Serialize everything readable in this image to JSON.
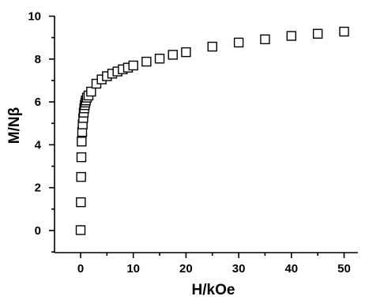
{
  "chart_data": {
    "type": "scatter",
    "xlabel": "H/kOe",
    "ylabel": "M/Nβ",
    "xlim": [
      -5,
      52
    ],
    "ylim": [
      -1,
      10
    ],
    "xticks": [
      0,
      10,
      20,
      30,
      40,
      50
    ],
    "yticks": [
      0,
      2,
      4,
      6,
      8,
      10
    ],
    "xtick_labels": [
      "0",
      "10",
      "20",
      "30",
      "40",
      "50"
    ],
    "ytick_labels": [
      "0",
      "2",
      "4",
      "6",
      "8",
      "10"
    ],
    "marker": "open-square",
    "grid": false,
    "series": [
      {
        "points": [
          [
            0.0,
            0.02
          ],
          [
            0.05,
            1.32
          ],
          [
            0.1,
            2.5
          ],
          [
            0.15,
            3.42
          ],
          [
            0.2,
            4.15
          ],
          [
            0.3,
            4.6
          ],
          [
            0.4,
            4.95
          ],
          [
            0.5,
            5.25
          ],
          [
            0.6,
            5.5
          ],
          [
            0.7,
            5.7
          ],
          [
            0.8,
            5.85
          ],
          [
            0.9,
            5.97
          ],
          [
            1.0,
            6.07
          ],
          [
            1.2,
            6.2
          ],
          [
            1.5,
            6.3
          ],
          [
            2.0,
            6.48
          ],
          [
            3.0,
            6.85
          ],
          [
            4.0,
            7.05
          ],
          [
            5.0,
            7.2
          ],
          [
            6.0,
            7.32
          ],
          [
            7.0,
            7.42
          ],
          [
            8.0,
            7.52
          ],
          [
            9.0,
            7.6
          ],
          [
            10.0,
            7.7
          ],
          [
            12.5,
            7.88
          ],
          [
            15.0,
            8.02
          ],
          [
            17.5,
            8.2
          ],
          [
            20.0,
            8.32
          ],
          [
            25.0,
            8.58
          ],
          [
            30.0,
            8.77
          ],
          [
            35.0,
            8.92
          ],
          [
            40.0,
            9.08
          ],
          [
            45.0,
            9.18
          ],
          [
            50.0,
            9.28
          ]
        ]
      }
    ]
  }
}
